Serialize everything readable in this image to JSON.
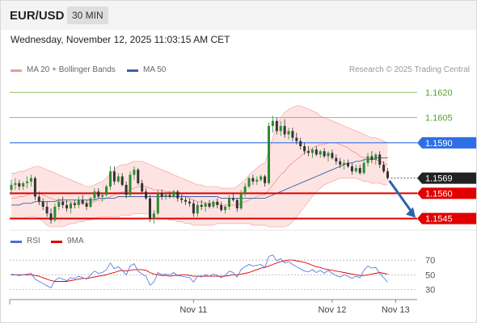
{
  "header": {
    "symbol": "EUR/USD",
    "timeframe": "30 MIN"
  },
  "datetime": "Wednesday, November 12, 2025 11:03:15 AM CET",
  "credit": "Research © 2025 Trading Central",
  "colors": {
    "bollinger": "#f39a97",
    "band_fill": "#fde4e2",
    "ma50": "#3a62a8",
    "bull": "#2f8a2f",
    "bear": "#333333",
    "support": "#e00000",
    "resistance": "#2f6fe6",
    "target": "#7fbf4f",
    "arrow": "#2e63ae",
    "rsi": "#4a6fe0",
    "rsi_ma": "#e00000"
  },
  "chart_data": [
    {
      "type": "candlestick",
      "legend": [
        {
          "label": "MA 20 + Bollinger Bands",
          "color": "#f39a97"
        },
        {
          "label": "MA 50",
          "color": "#3a62a8"
        }
      ],
      "ylim": [
        1.154,
        1.1624
      ],
      "x_ticks": [
        {
          "label": "Nov 11",
          "index": 46
        },
        {
          "label": "Nov 12",
          "index": 81
        },
        {
          "label": "Nov 13",
          "index": 97
        }
      ],
      "levels": [
        {
          "value": 1.162,
          "label": "1.1620",
          "kind": "target"
        },
        {
          "value": 1.1605,
          "label": "1.1605",
          "kind": "target"
        },
        {
          "value": 1.159,
          "label": "1.1590",
          "kind": "resistance"
        },
        {
          "value": 1.1569,
          "label": "1.1569",
          "kind": "last"
        },
        {
          "value": 1.156,
          "label": "1.1560",
          "kind": "support"
        },
        {
          "value": 1.1545,
          "label": "1.1545",
          "kind": "support"
        }
      ],
      "ohlc": [
        [
          1.1562,
          1.1568,
          1.1559,
          1.1565
        ],
        [
          1.1565,
          1.1569,
          1.1562,
          1.1566
        ],
        [
          1.1566,
          1.1568,
          1.1562,
          1.1564
        ],
        [
          1.1564,
          1.1567,
          1.1562,
          1.1566
        ],
        [
          1.1566,
          1.157,
          1.1563,
          1.1567
        ],
        [
          1.1567,
          1.1571,
          1.1564,
          1.1569
        ],
        [
          1.1569,
          1.157,
          1.1556,
          1.1558
        ],
        [
          1.1558,
          1.1561,
          1.1553,
          1.1555
        ],
        [
          1.1555,
          1.1557,
          1.155,
          1.1552
        ],
        [
          1.1552,
          1.1555,
          1.1546,
          1.1548
        ],
        [
          1.1548,
          1.1551,
          1.1542,
          1.1544
        ],
        [
          1.1544,
          1.1554,
          1.1543,
          1.1552
        ],
        [
          1.1552,
          1.1557,
          1.155,
          1.1555
        ],
        [
          1.1555,
          1.1558,
          1.1551,
          1.1553
        ],
        [
          1.1553,
          1.1556,
          1.1549,
          1.1551
        ],
        [
          1.1551,
          1.1555,
          1.1548,
          1.1554
        ],
        [
          1.1554,
          1.1556,
          1.1551,
          1.1553
        ],
        [
          1.1553,
          1.1558,
          1.1551,
          1.1556
        ],
        [
          1.1556,
          1.1559,
          1.1553,
          1.1554
        ],
        [
          1.1554,
          1.1556,
          1.155,
          1.1552
        ],
        [
          1.1552,
          1.1558,
          1.1551,
          1.1557
        ],
        [
          1.1557,
          1.1563,
          1.1556,
          1.1561
        ],
        [
          1.1561,
          1.1563,
          1.1557,
          1.1558
        ],
        [
          1.1558,
          1.156,
          1.1555,
          1.1559
        ],
        [
          1.1559,
          1.1565,
          1.1558,
          1.1564
        ],
        [
          1.1564,
          1.1576,
          1.1562,
          1.1573
        ],
        [
          1.1573,
          1.1576,
          1.1565,
          1.1567
        ],
        [
          1.1567,
          1.1572,
          1.1566,
          1.157
        ],
        [
          1.157,
          1.1572,
          1.1564,
          1.1565
        ],
        [
          1.1565,
          1.1567,
          1.1557,
          1.1559
        ],
        [
          1.1559,
          1.1573,
          1.1558,
          1.1571
        ],
        [
          1.1571,
          1.1576,
          1.1568,
          1.1574
        ],
        [
          1.1574,
          1.1575,
          1.1565,
          1.1566
        ],
        [
          1.1566,
          1.1568,
          1.156,
          1.1561
        ],
        [
          1.1561,
          1.1563,
          1.1556,
          1.1557
        ],
        [
          1.1557,
          1.1559,
          1.1543,
          1.1545
        ],
        [
          1.1545,
          1.155,
          1.1542,
          1.1548
        ],
        [
          1.1548,
          1.1562,
          1.1547,
          1.156
        ],
        [
          1.156,
          1.1562,
          1.1556,
          1.1558
        ],
        [
          1.1558,
          1.1561,
          1.1556,
          1.1559
        ],
        [
          1.1559,
          1.1561,
          1.1557,
          1.1558
        ],
        [
          1.1558,
          1.1562,
          1.1557,
          1.1561
        ],
        [
          1.1561,
          1.1562,
          1.1555,
          1.1557
        ],
        [
          1.1557,
          1.1559,
          1.1554,
          1.1556
        ],
        [
          1.1556,
          1.1558,
          1.1553,
          1.1555
        ],
        [
          1.1555,
          1.1557,
          1.1552,
          1.1554
        ],
        [
          1.1554,
          1.1556,
          1.1546,
          1.1548
        ],
        [
          1.1548,
          1.1555,
          1.1546,
          1.1553
        ],
        [
          1.1553,
          1.1556,
          1.155,
          1.1552
        ],
        [
          1.1552,
          1.1555,
          1.1549,
          1.1554
        ],
        [
          1.1554,
          1.1556,
          1.1551,
          1.1552
        ],
        [
          1.1552,
          1.1556,
          1.1551,
          1.1555
        ],
        [
          1.1555,
          1.1557,
          1.1551,
          1.1553
        ],
        [
          1.1553,
          1.1555,
          1.1549,
          1.155
        ],
        [
          1.155,
          1.1553,
          1.1548,
          1.1552
        ],
        [
          1.1552,
          1.1559,
          1.155,
          1.1557
        ],
        [
          1.1557,
          1.156,
          1.1555,
          1.1556
        ],
        [
          1.1556,
          1.1557,
          1.1549,
          1.1551
        ],
        [
          1.1551,
          1.1562,
          1.155,
          1.156
        ],
        [
          1.156,
          1.1566,
          1.1558,
          1.1564
        ],
        [
          1.1564,
          1.157,
          1.1563,
          1.1569
        ],
        [
          1.1569,
          1.1571,
          1.1565,
          1.1567
        ],
        [
          1.1567,
          1.157,
          1.1565,
          1.1568
        ],
        [
          1.1568,
          1.1571,
          1.1567,
          1.157
        ],
        [
          1.157,
          1.1571,
          1.1564,
          1.1566
        ],
        [
          1.1566,
          1.1602,
          1.1565,
          1.16
        ],
        [
          1.16,
          1.1606,
          1.1596,
          1.1603
        ],
        [
          1.1603,
          1.1605,
          1.1595,
          1.1597
        ],
        [
          1.1597,
          1.1603,
          1.1594,
          1.16
        ],
        [
          1.16,
          1.1604,
          1.1593,
          1.1595
        ],
        [
          1.1595,
          1.1599,
          1.1592,
          1.1597
        ],
        [
          1.1597,
          1.1599,
          1.1591,
          1.1593
        ],
        [
          1.1593,
          1.1596,
          1.1589,
          1.1591
        ],
        [
          1.1591,
          1.1593,
          1.1586,
          1.1588
        ],
        [
          1.1588,
          1.159,
          1.1583,
          1.1585
        ],
        [
          1.1585,
          1.1588,
          1.1582,
          1.1584
        ],
        [
          1.1584,
          1.1587,
          1.1581,
          1.1586
        ],
        [
          1.1586,
          1.1588,
          1.1582,
          1.1583
        ],
        [
          1.1583,
          1.1586,
          1.1581,
          1.1585
        ],
        [
          1.1585,
          1.1587,
          1.1581,
          1.1582
        ],
        [
          1.1582,
          1.1585,
          1.1579,
          1.1584
        ],
        [
          1.1584,
          1.1586,
          1.158,
          1.1581
        ],
        [
          1.1581,
          1.1583,
          1.1577,
          1.1579
        ],
        [
          1.1579,
          1.1581,
          1.1575,
          1.1577
        ],
        [
          1.1577,
          1.158,
          1.1574,
          1.1578
        ],
        [
          1.1578,
          1.158,
          1.1575,
          1.1576
        ],
        [
          1.1576,
          1.1578,
          1.1571,
          1.1573
        ],
        [
          1.1573,
          1.1577,
          1.1572,
          1.1575
        ],
        [
          1.1575,
          1.1577,
          1.1571,
          1.1572
        ],
        [
          1.1572,
          1.158,
          1.1571,
          1.1578
        ],
        [
          1.1578,
          1.1584,
          1.1576,
          1.1582
        ],
        [
          1.1582,
          1.1585,
          1.1578,
          1.158
        ],
        [
          1.158,
          1.1584,
          1.1577,
          1.1583
        ],
        [
          1.1583,
          1.1585,
          1.1575,
          1.1577
        ],
        [
          1.1577,
          1.1579,
          1.1572,
          1.1573
        ],
        [
          1.1573,
          1.1575,
          1.1568,
          1.1569
        ]
      ],
      "ma20": [
        1.1557,
        1.1557,
        1.1558,
        1.1558,
        1.1559,
        1.156,
        1.156,
        1.156,
        1.1559,
        1.1558,
        1.1557,
        1.1556,
        1.1556,
        1.1555,
        1.1555,
        1.1555,
        1.1554,
        1.1554,
        1.1554,
        1.1554,
        1.1554,
        1.1555,
        1.1556,
        1.1556,
        1.1557,
        1.1558,
        1.1559,
        1.156,
        1.1561,
        1.1561,
        1.1562,
        1.1563,
        1.1564,
        1.1564,
        1.1564,
        1.1563,
        1.1562,
        1.1562,
        1.1562,
        1.1561,
        1.1561,
        1.1561,
        1.156,
        1.1559,
        1.1558,
        1.1557,
        1.1556,
        1.1555,
        1.1555,
        1.1554,
        1.1554,
        1.1554,
        1.1554,
        1.1553,
        1.1553,
        1.1553,
        1.1553,
        1.1553,
        1.1554,
        1.1555,
        1.1556,
        1.1557,
        1.1558,
        1.1559,
        1.1559,
        1.1562,
        1.1565,
        1.1568,
        1.1571,
        1.1573,
        1.1576,
        1.1578,
        1.158,
        1.1582,
        1.1584,
        1.1585,
        1.1587,
        1.1588,
        1.1589,
        1.1589,
        1.159,
        1.159,
        1.159,
        1.1589,
        1.1588,
        1.1587,
        1.1585,
        1.1584,
        1.1582,
        1.1581,
        1.1581,
        1.158,
        1.158,
        1.1579,
        1.1578,
        1.1577
      ],
      "bb_upper": [
        1.1572,
        1.1572,
        1.1573,
        1.1573,
        1.1574,
        1.1575,
        1.1576,
        1.1576,
        1.1575,
        1.1574,
        1.1573,
        1.1572,
        1.1571,
        1.157,
        1.1569,
        1.1568,
        1.1567,
        1.1566,
        1.1565,
        1.1564,
        1.1564,
        1.1565,
        1.1566,
        1.1567,
        1.1569,
        1.1572,
        1.1574,
        1.1576,
        1.1577,
        1.1577,
        1.1578,
        1.1579,
        1.1579,
        1.1579,
        1.1578,
        1.1577,
        1.1576,
        1.1575,
        1.1574,
        1.1573,
        1.1572,
        1.1571,
        1.157,
        1.1569,
        1.1568,
        1.1567,
        1.1566,
        1.1565,
        1.1565,
        1.1564,
        1.1564,
        1.1564,
        1.1564,
        1.1563,
        1.1563,
        1.1563,
        1.1563,
        1.1564,
        1.1566,
        1.1568,
        1.1571,
        1.1573,
        1.1575,
        1.1577,
        1.1578,
        1.1585,
        1.1593,
        1.16,
        1.1605,
        1.1608,
        1.161,
        1.1611,
        1.1612,
        1.1612,
        1.1611,
        1.161,
        1.1609,
        1.1608,
        1.1606,
        1.1605,
        1.1604,
        1.1603,
        1.1602,
        1.1601,
        1.16,
        1.1599,
        1.1598,
        1.1597,
        1.1596,
        1.1595,
        1.1594,
        1.1593,
        1.1593,
        1.1592,
        1.1591,
        1.159
      ],
      "bb_lower": [
        1.1545,
        1.1545,
        1.1545,
        1.1545,
        1.1546,
        1.1546,
        1.1546,
        1.1545,
        1.1543,
        1.1541,
        1.154,
        1.154,
        1.154,
        1.154,
        1.1541,
        1.1542,
        1.1542,
        1.1543,
        1.1543,
        1.1544,
        1.1544,
        1.1545,
        1.1546,
        1.1546,
        1.1546,
        1.1546,
        1.1546,
        1.1546,
        1.1547,
        1.1547,
        1.1547,
        1.1548,
        1.1548,
        1.1548,
        1.1548,
        1.1547,
        1.1546,
        1.1546,
        1.1545,
        1.1545,
        1.1544,
        1.1544,
        1.1543,
        1.1543,
        1.1542,
        1.1542,
        1.1541,
        1.1541,
        1.1541,
        1.1541,
        1.1541,
        1.1541,
        1.1542,
        1.1542,
        1.1542,
        1.1542,
        1.1542,
        1.1542,
        1.1542,
        1.1542,
        1.1542,
        1.1541,
        1.1541,
        1.1541,
        1.1541,
        1.154,
        1.154,
        1.154,
        1.154,
        1.154,
        1.1541,
        1.1543,
        1.1546,
        1.1549,
        1.1552,
        1.1555,
        1.1558,
        1.1561,
        1.1563,
        1.1565,
        1.1566,
        1.1567,
        1.1568,
        1.1569,
        1.1569,
        1.1569,
        1.1569,
        1.1569,
        1.1568,
        1.1567,
        1.1567,
        1.1566,
        1.1566,
        1.1566,
        1.1565,
        1.1565
      ],
      "ma50": [
        1.1553,
        1.1553,
        1.1553,
        1.1554,
        1.1554,
        1.1554,
        1.1555,
        1.1555,
        1.1555,
        1.1555,
        1.1555,
        1.1555,
        1.1556,
        1.1556,
        1.1556,
        1.1556,
        1.1556,
        1.1556,
        1.1556,
        1.1556,
        1.1556,
        1.1556,
        1.1557,
        1.1557,
        1.1557,
        1.1557,
        1.1557,
        1.1558,
        1.1558,
        1.1558,
        1.1558,
        1.1558,
        1.1558,
        1.1558,
        1.1558,
        1.1558,
        1.1558,
        1.1558,
        1.1558,
        1.1558,
        1.1558,
        1.1558,
        1.1558,
        1.1558,
        1.1558,
        1.1558,
        1.1558,
        1.1558,
        1.1558,
        1.1558,
        1.1558,
        1.1558,
        1.1558,
        1.1557,
        1.1557,
        1.1557,
        1.1557,
        1.1557,
        1.1557,
        1.1557,
        1.1557,
        1.1557,
        1.1557,
        1.1557,
        1.1557,
        1.1558,
        1.1559,
        1.156,
        1.1561,
        1.1562,
        1.1563,
        1.1564,
        1.1565,
        1.1566,
        1.1567,
        1.1568,
        1.1569,
        1.157,
        1.1571,
        1.1572,
        1.1573,
        1.1574,
        1.1575,
        1.1576,
        1.1577,
        1.1578,
        1.1578,
        1.1579,
        1.1579,
        1.158,
        1.158,
        1.158,
        1.1581,
        1.1581,
        1.1581,
        1.1581
      ],
      "forecast": {
        "from": 1.1569,
        "to": 1.1545
      }
    },
    {
      "type": "line",
      "legend": [
        {
          "label": "RSI",
          "color": "#4a6fe0"
        },
        {
          "label": "9MA",
          "color": "#e00000"
        }
      ],
      "ylim": [
        25,
        80
      ],
      "y_ticks": [
        "70",
        "50",
        "30"
      ],
      "levels": [
        70,
        50,
        30
      ],
      "rsi": [
        51,
        50,
        49,
        50,
        51,
        52,
        44,
        41,
        38,
        35,
        32,
        42,
        46,
        44,
        42,
        46,
        45,
        48,
        46,
        44,
        50,
        55,
        52,
        53,
        57,
        66,
        58,
        61,
        56,
        50,
        62,
        65,
        55,
        51,
        48,
        36,
        40,
        53,
        50,
        51,
        50,
        53,
        49,
        48,
        47,
        46,
        40,
        48,
        47,
        50,
        48,
        51,
        49,
        46,
        49,
        55,
        53,
        47,
        57,
        61,
        64,
        62,
        63,
        64,
        60,
        75,
        77,
        69,
        72,
        66,
        68,
        64,
        61,
        58,
        55,
        54,
        57,
        53,
        56,
        52,
        56,
        52,
        49,
        47,
        50,
        48,
        45,
        48,
        46,
        56,
        62,
        59,
        60,
        52,
        46,
        40
      ],
      "rsi_ma": [
        50,
        50,
        50,
        50,
        50,
        50,
        49,
        48,
        46,
        44,
        42,
        41,
        41,
        41,
        41,
        42,
        43,
        44,
        45,
        45,
        46,
        47,
        48,
        49,
        50,
        52,
        53,
        55,
        56,
        55,
        56,
        57,
        57,
        57,
        56,
        53,
        51,
        50,
        49,
        49,
        48,
        49,
        49,
        50,
        50,
        49,
        48,
        48,
        48,
        48,
        48,
        48,
        48,
        48,
        48,
        49,
        50,
        50,
        51,
        52,
        53,
        55,
        57,
        59,
        60,
        62,
        64,
        66,
        68,
        69,
        70,
        70,
        69,
        68,
        67,
        65,
        63,
        61,
        60,
        58,
        57,
        56,
        55,
        54,
        53,
        52,
        51,
        50,
        49,
        49,
        50,
        51,
        52,
        53,
        52,
        51
      ]
    }
  ]
}
